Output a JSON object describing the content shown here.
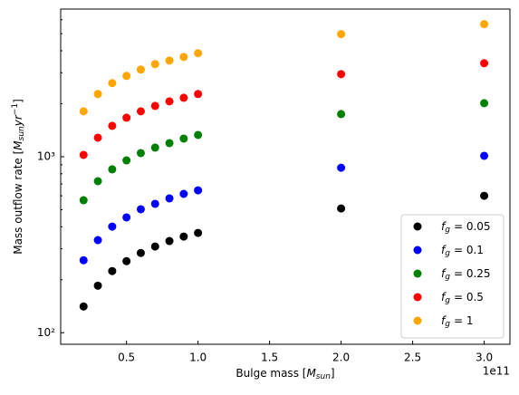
{
  "chart_data": {
    "type": "scatter",
    "x_label_parts": [
      "Bulge mass [",
      "M",
      "sun",
      "]"
    ],
    "y_label_parts": [
      "Mass outflow rate [",
      "M",
      "sun",
      "yr",
      "−1",
      "]"
    ],
    "x_offset_label": "1e11",
    "x": [
      0.2,
      0.3,
      0.4,
      0.5,
      0.6,
      0.7,
      0.8,
      0.9,
      1.0,
      2.0,
      3.0
    ],
    "legend_symbol": "f",
    "legend_subscript": "g",
    "series": [
      {
        "name": "= 0.05",
        "color": "#000000",
        "values": [
          141,
          185,
          224,
          255,
          284,
          309,
          332,
          352,
          369,
          508,
          600
        ]
      },
      {
        "name": "= 0.1",
        "color": "#0000ff",
        "values": [
          258,
          336,
          401,
          452,
          503,
          540,
          580,
          615,
          644,
          866,
          1012
        ]
      },
      {
        "name": "= 0.25",
        "color": "#008000",
        "values": [
          566,
          726,
          848,
          953,
          1049,
          1127,
          1195,
          1268,
          1329,
          1747,
          2014
        ]
      },
      {
        "name": "= 0.5",
        "color": "#ff0000",
        "values": [
          1024,
          1283,
          1497,
          1666,
          1811,
          1944,
          2063,
          2162,
          2270,
          2946,
          3398
        ]
      },
      {
        "name": "= 1",
        "color": "#ffa500",
        "values": [
          1811,
          2270,
          2619,
          2878,
          3127,
          3357,
          3518,
          3688,
          3872,
          4970,
          5665
        ]
      }
    ],
    "xlim": [
      0.04,
      3.18
    ],
    "xticks": [
      0.5,
      {
        "value": 1.0,
        "label": "1.0"
      },
      1.5,
      {
        "value": 2.0,
        "label": "2.0"
      },
      2.5,
      {
        "value": 3.0,
        "label": "3.0"
      }
    ],
    "ylim": [
      86,
      6900
    ],
    "log_y": true,
    "yticks": [
      {
        "value": 100,
        "label": "10²"
      },
      {
        "value": 1000,
        "label": "10³"
      }
    ],
    "yminorticks": [
      200,
      300,
      400,
      500,
      600,
      700,
      800,
      900,
      2000,
      3000,
      4000,
      5000,
      6000
    ],
    "legend": "lower right",
    "grid": false
  }
}
